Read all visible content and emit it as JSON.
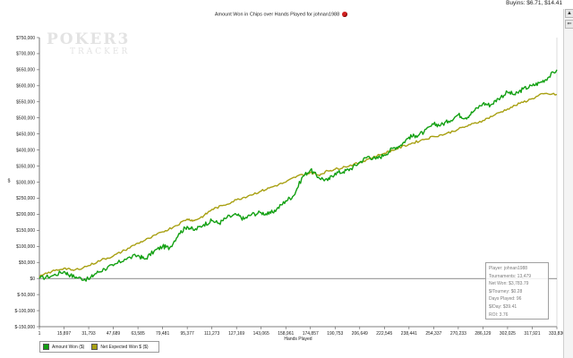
{
  "header": {
    "buyins": "Buyins: $6.71, $14.41",
    "title": "Amount Won in Chips over Hands Played for johnan1988"
  },
  "watermark": {
    "line1": "POKER3",
    "line2": "TRACKER"
  },
  "stats": {
    "player": "Player: johnan1988",
    "tournaments": "Tournaments: 13,479",
    "net_won": "Net Won: $3,783.79",
    "per_tourney": "$/Tourney: $0.28",
    "days_played": "Days Played: 96",
    "per_day": "$/Day: $39.41",
    "roi": "ROI: 3.76"
  },
  "chart_data": {
    "type": "line",
    "title": "Amount Won in Chips over Hands Played for johnan1988",
    "xlabel": "Hands Played",
    "ylabel": "$",
    "xlim": [
      1,
      333830
    ],
    "ylim": [
      -150000,
      750000
    ],
    "grid": false,
    "legend_position": "bottom-left",
    "x_ticks": [
      1,
      15897,
      31793,
      47689,
      63585,
      79481,
      95377,
      111273,
      127169,
      143065,
      158961,
      174857,
      190753,
      206649,
      222545,
      238441,
      254337,
      270233,
      286129,
      302025,
      317921,
      333830
    ],
    "x_tick_labels": [
      "1",
      "15,897",
      "31,793",
      "47,689",
      "63,585",
      "79,481",
      "95,377",
      "111,273",
      "127,169",
      "143,065",
      "158,961",
      "174,857",
      "190,753",
      "206,649",
      "222,545",
      "238,441",
      "254,337",
      "270,233",
      "286,129",
      "302,025",
      "317,921",
      "333,830"
    ],
    "y_ticks": [
      -150000,
      -100000,
      -50000,
      0,
      50000,
      100000,
      150000,
      200000,
      250000,
      300000,
      350000,
      400000,
      450000,
      500000,
      550000,
      600000,
      650000,
      700000,
      750000
    ],
    "y_tick_labels": [
      "$-150,000",
      "$-100,000",
      "$-50,000",
      "$0",
      "$50,000",
      "$100,000",
      "$150,000",
      "$200,000",
      "$250,000",
      "$300,000",
      "$350,000",
      "$400,000",
      "$450,000",
      "$500,000",
      "$550,000",
      "$600,000",
      "$650,000",
      "$700,000",
      "$750,000"
    ],
    "series": [
      {
        "name": "Amount Won ($)",
        "color": "#12a012",
        "points": [
          [
            1,
            0
          ],
          [
            8000,
            8000
          ],
          [
            15897,
            22000
          ],
          [
            20000,
            10000
          ],
          [
            25000,
            2000
          ],
          [
            31793,
            -3000
          ],
          [
            36000,
            15000
          ],
          [
            42000,
            30000
          ],
          [
            47689,
            40000
          ],
          [
            55000,
            60000
          ],
          [
            63585,
            72000
          ],
          [
            68000,
            60000
          ],
          [
            74000,
            85000
          ],
          [
            79481,
            100000
          ],
          [
            84000,
            95000
          ],
          [
            90000,
            140000
          ],
          [
            95377,
            162000
          ],
          [
            100000,
            150000
          ],
          [
            106000,
            168000
          ],
          [
            111273,
            180000
          ],
          [
            116000,
            172000
          ],
          [
            121000,
            190000
          ],
          [
            127169,
            198000
          ],
          [
            132000,
            185000
          ],
          [
            137000,
            200000
          ],
          [
            143065,
            205000
          ],
          [
            148000,
            200000
          ],
          [
            153000,
            215000
          ],
          [
            158961,
            242000
          ],
          [
            164000,
            258000
          ],
          [
            170000,
            318000
          ],
          [
            174857,
            338000
          ],
          [
            180000,
            315000
          ],
          [
            186000,
            305000
          ],
          [
            190753,
            328000
          ],
          [
            196000,
            332000
          ],
          [
            201000,
            342000
          ],
          [
            206649,
            362000
          ],
          [
            212000,
            380000
          ],
          [
            217000,
            372000
          ],
          [
            222545,
            385000
          ],
          [
            228000,
            405000
          ],
          [
            233000,
            415000
          ],
          [
            238441,
            440000
          ],
          [
            243000,
            445000
          ],
          [
            248000,
            455000
          ],
          [
            254337,
            480000
          ],
          [
            259000,
            478000
          ],
          [
            264000,
            490000
          ],
          [
            270233,
            510000
          ],
          [
            275000,
            500000
          ],
          [
            280000,
            520000
          ],
          [
            286129,
            545000
          ],
          [
            291000,
            540000
          ],
          [
            296000,
            560000
          ],
          [
            302025,
            580000
          ],
          [
            307000,
            572000
          ],
          [
            312000,
            590000
          ],
          [
            317921,
            600000
          ],
          [
            323000,
            610000
          ],
          [
            328000,
            625000
          ],
          [
            333830,
            650000
          ]
        ]
      },
      {
        "name": "Net Expected Won $ ($)",
        "color": "#a8a012",
        "points": [
          [
            1,
            5000
          ],
          [
            8000,
            22000
          ],
          [
            15897,
            32000
          ],
          [
            22000,
            25000
          ],
          [
            31793,
            40000
          ],
          [
            40000,
            58000
          ],
          [
            47689,
            70000
          ],
          [
            55000,
            88000
          ],
          [
            63585,
            110000
          ],
          [
            71000,
            125000
          ],
          [
            79481,
            145000
          ],
          [
            87000,
            162000
          ],
          [
            95377,
            185000
          ],
          [
            100000,
            180000
          ],
          [
            106000,
            195000
          ],
          [
            111273,
            215000
          ],
          [
            119000,
            228000
          ],
          [
            127169,
            245000
          ],
          [
            135000,
            258000
          ],
          [
            143065,
            272000
          ],
          [
            150000,
            285000
          ],
          [
            158961,
            300000
          ],
          [
            166000,
            318000
          ],
          [
            174857,
            330000
          ],
          [
            180000,
            322000
          ],
          [
            186000,
            335000
          ],
          [
            190753,
            340000
          ],
          [
            197000,
            348000
          ],
          [
            206649,
            360000
          ],
          [
            212000,
            372000
          ],
          [
            222545,
            390000
          ],
          [
            230000,
            403000
          ],
          [
            238441,
            418000
          ],
          [
            246000,
            430000
          ],
          [
            254337,
            442000
          ],
          [
            262000,
            450000
          ],
          [
            270233,
            465000
          ],
          [
            278000,
            478000
          ],
          [
            286129,
            492000
          ],
          [
            294000,
            510000
          ],
          [
            302025,
            528000
          ],
          [
            310000,
            545000
          ],
          [
            317921,
            560000
          ],
          [
            325000,
            575000
          ],
          [
            333830,
            573000
          ]
        ]
      }
    ]
  }
}
